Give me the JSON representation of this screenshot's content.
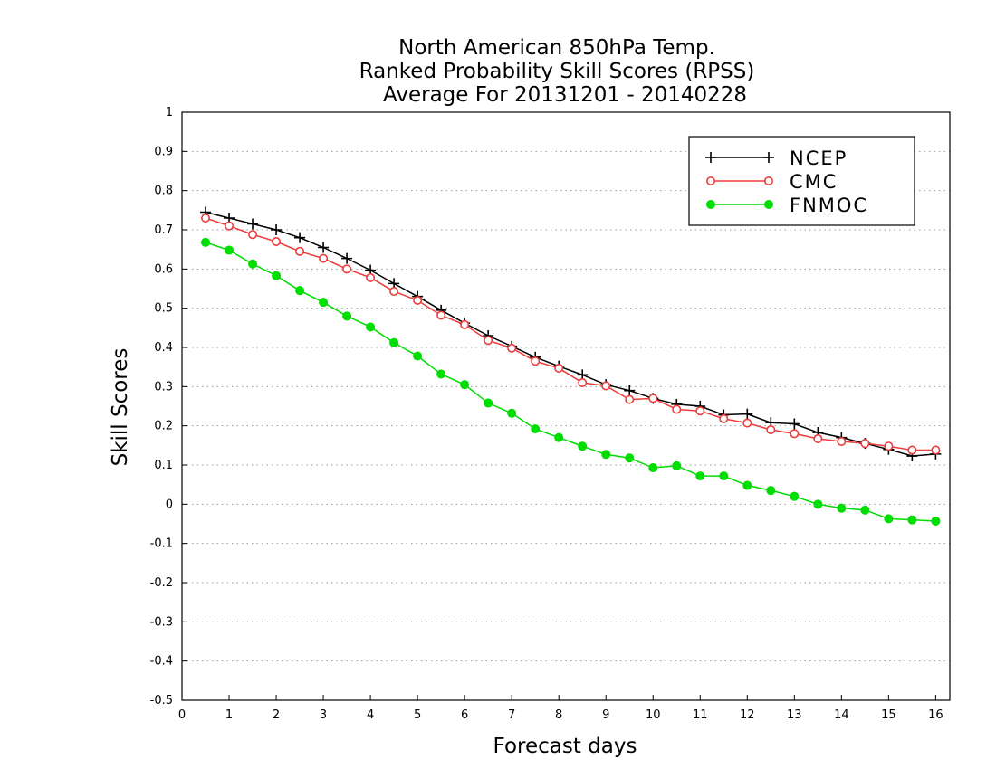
{
  "chart_data": {
    "type": "line",
    "title": [
      "North American 850hPa Temp.",
      "Ranked Probability Skill Scores (RPSS)",
      "Average For 20131201 - 20140228"
    ],
    "xlabel": "Forecast days",
    "ylabel": "Skill Scores",
    "xlim": [
      0,
      16.3
    ],
    "ylim": [
      -0.5,
      1
    ],
    "xticks": [
      "0",
      "1",
      "2",
      "3",
      "4",
      "5",
      "6",
      "7",
      "8",
      "9",
      "10",
      "11",
      "12",
      "13",
      "14",
      "15",
      "16"
    ],
    "yticks": [
      "1",
      "0.9",
      "0.8",
      "0.7",
      "0.6",
      "0.5",
      "0.4",
      "0.3",
      "0.2",
      "0.1",
      "0",
      "-0.1",
      "-0.2",
      "-0.3",
      "-0.4",
      "-0.5"
    ],
    "grid": "horizontal dotted",
    "legend_position": "top-right",
    "x": [
      0.5,
      1,
      1.5,
      2,
      2.5,
      3,
      3.5,
      4,
      4.5,
      5,
      5.5,
      6,
      6.5,
      7,
      7.5,
      8,
      8.5,
      9,
      9.5,
      10,
      10.5,
      11,
      11.5,
      12,
      12.5,
      13,
      13.5,
      14,
      14.5,
      15,
      15.5,
      16
    ],
    "series": [
      {
        "name": "NCEP",
        "color": "#000000",
        "marker": "plus",
        "values": [
          0.745,
          0.73,
          0.715,
          0.7,
          0.68,
          0.655,
          0.627,
          0.597,
          0.563,
          0.53,
          0.495,
          0.462,
          0.43,
          0.403,
          0.375,
          0.352,
          0.33,
          0.305,
          0.29,
          0.27,
          0.255,
          0.25,
          0.228,
          0.23,
          0.208,
          0.205,
          0.183,
          0.17,
          0.155,
          0.14,
          0.123,
          0.128
        ]
      },
      {
        "name": "CMC",
        "color": "#ee3b3b",
        "marker": "open-circle",
        "values": [
          0.73,
          0.71,
          0.688,
          0.67,
          0.645,
          0.627,
          0.6,
          0.578,
          0.543,
          0.52,
          0.482,
          0.458,
          0.418,
          0.398,
          0.365,
          0.347,
          0.31,
          0.302,
          0.267,
          0.27,
          0.242,
          0.238,
          0.218,
          0.207,
          0.19,
          0.18,
          0.167,
          0.16,
          0.155,
          0.148,
          0.138,
          0.138
        ]
      },
      {
        "name": "FNMOC",
        "color": "#00dd00",
        "marker": "filled-circle",
        "values": [
          0.668,
          0.648,
          0.613,
          0.583,
          0.545,
          0.515,
          0.48,
          0.452,
          0.412,
          0.378,
          0.332,
          0.305,
          0.258,
          0.232,
          0.192,
          0.17,
          0.148,
          0.127,
          0.118,
          0.093,
          0.098,
          0.072,
          0.072,
          0.048,
          0.035,
          0.02,
          0.0,
          -0.01,
          -0.015,
          -0.037,
          -0.04,
          -0.043
        ]
      }
    ]
  }
}
